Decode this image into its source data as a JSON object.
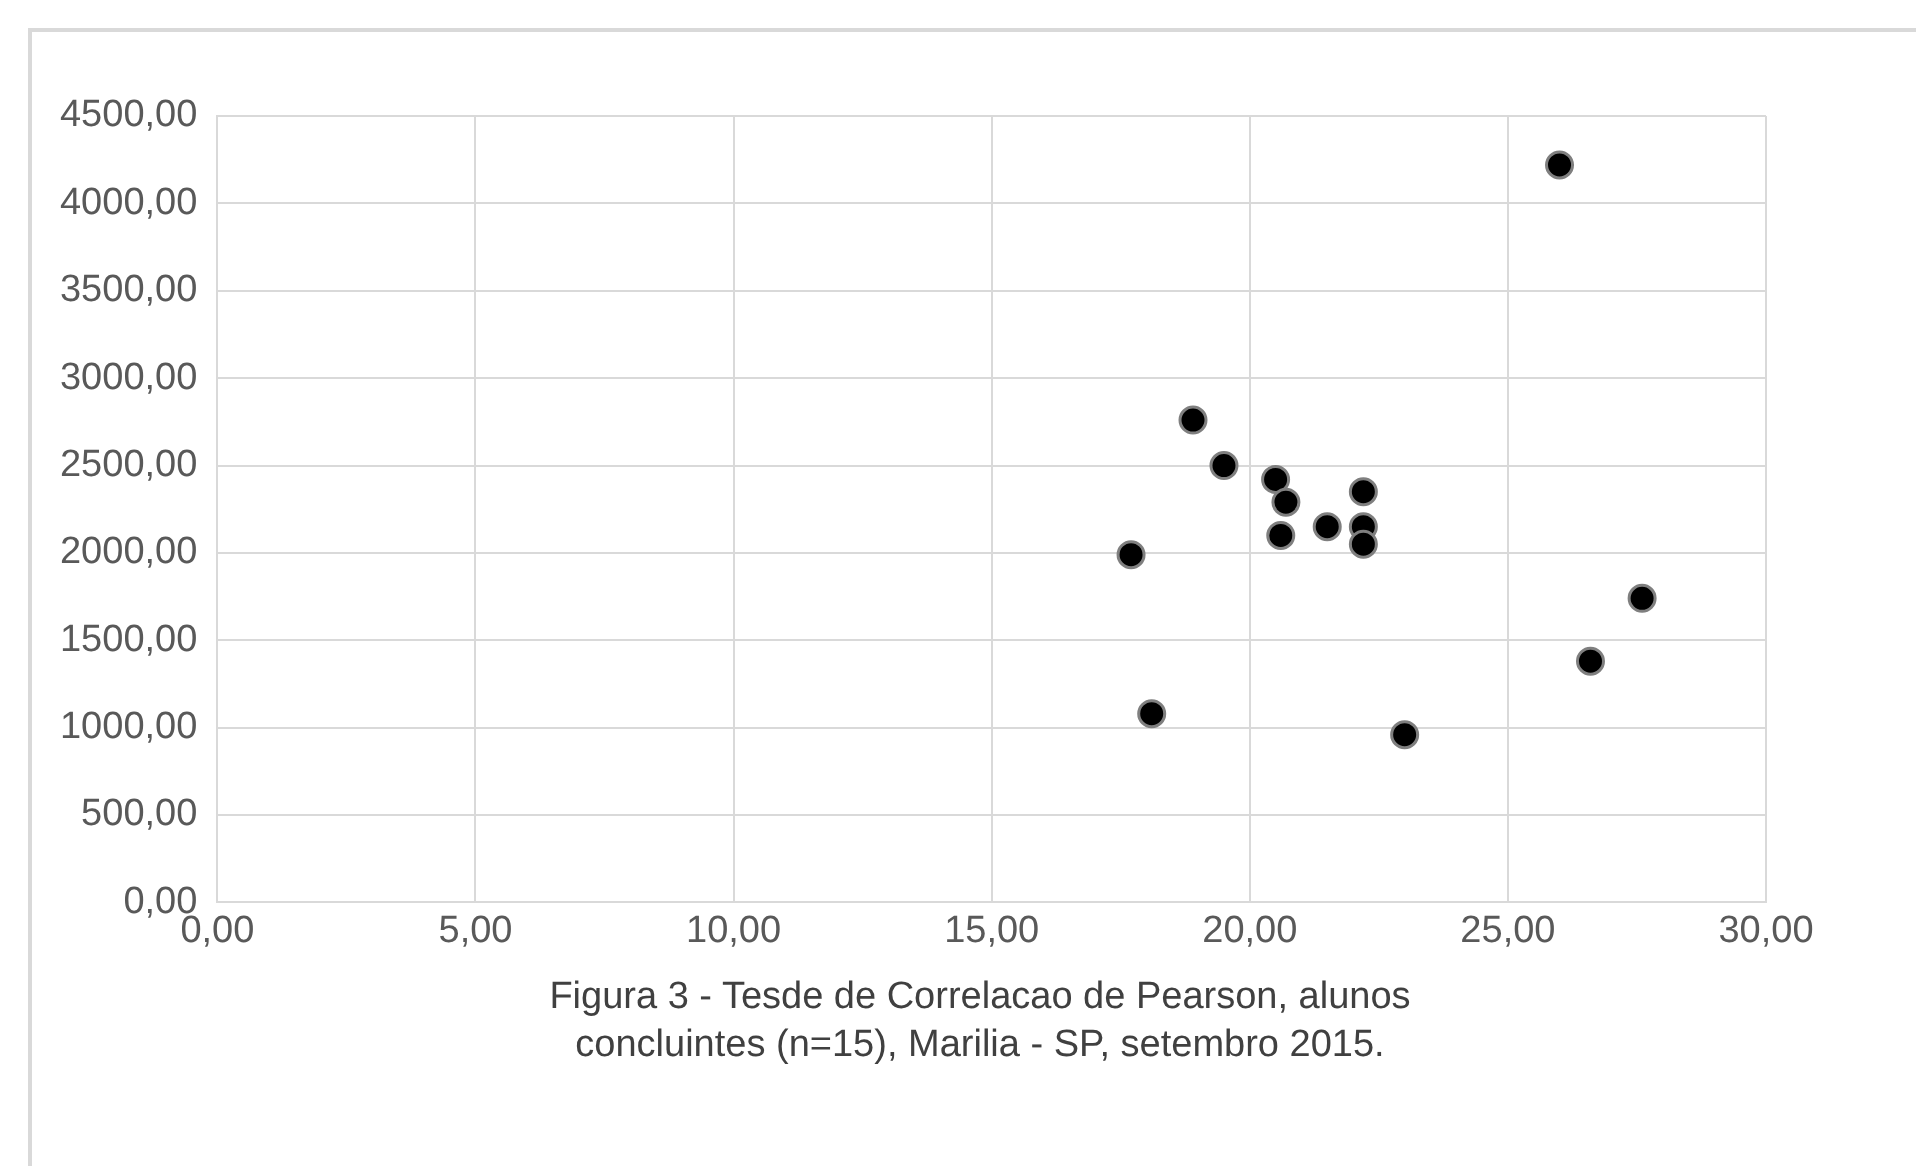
{
  "chart_data": {
    "type": "scatter",
    "x": [
      18.9,
      19.5,
      20.5,
      20.7,
      20.6,
      21.5,
      22.2,
      22.2,
      22.2,
      17.7,
      18.1,
      23.0,
      26.0,
      27.6,
      26.6
    ],
    "values": [
      2760,
      2500,
      2420,
      2290,
      2100,
      2150,
      2350,
      2150,
      2050,
      1990,
      1080,
      960,
      4220,
      1740,
      1380
    ],
    "color": "#000000",
    "marker": "circle",
    "grid": true,
    "legend": false,
    "xlim": [
      0,
      30
    ],
    "xticks": [
      {
        "value": 0,
        "label": "0,00"
      },
      {
        "value": 5,
        "label": "5,00"
      },
      {
        "value": 10,
        "label": "10,00"
      },
      {
        "value": 15,
        "label": "15,00"
      },
      {
        "value": 20,
        "label": "20,00"
      },
      {
        "value": 25,
        "label": "25,00"
      },
      {
        "value": 30,
        "label": "30,00"
      }
    ],
    "ylim": [
      0,
      4500
    ],
    "yticks": [
      {
        "value": 0,
        "label": "0,00"
      },
      {
        "value": 500,
        "label": "500,00"
      },
      {
        "value": 1000,
        "label": "1000,00"
      },
      {
        "value": 1500,
        "label": "1500,00"
      },
      {
        "value": 2000,
        "label": "2000,00"
      },
      {
        "value": 2500,
        "label": "2500,00"
      },
      {
        "value": 3000,
        "label": "3000,00"
      },
      {
        "value": 3500,
        "label": "3500,00"
      },
      {
        "value": 4000,
        "label": "4000,00"
      },
      {
        "value": 4500,
        "label": "4500,00"
      }
    ],
    "annotations": [
      "Figura 3 - Tesde de Correlacao de Pearson, alunos concluintes (n=15), Marilia - SP, setembro 2015."
    ]
  }
}
